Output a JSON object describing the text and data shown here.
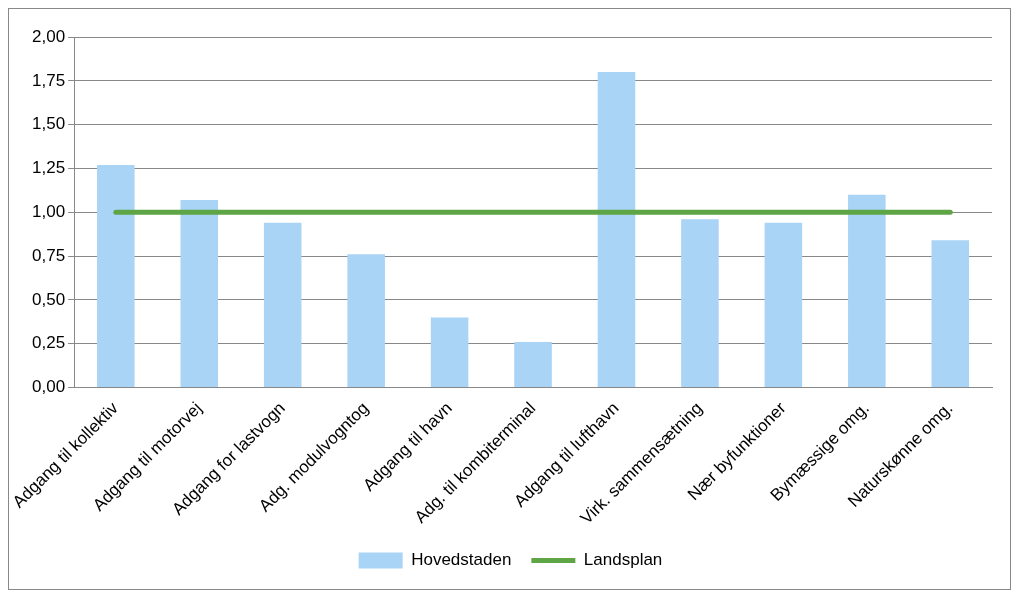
{
  "chart_data": {
    "type": "bar",
    "categories": [
      "Adgang til kollektiv",
      "Adgang til motorvej",
      "Adgang for lastvogn",
      "Adg. modulvogntog",
      "Adgang til havn",
      "Adg. til kombiterminal",
      "Adgang til lufthavn",
      "Virk. sammensætning",
      "Nær byfunktioner",
      "Bymæssige omg.",
      "Naturskønne omg."
    ],
    "series": [
      {
        "name": "Hovedstaden",
        "color": "#a9d4f5",
        "values": [
          1.27,
          1.07,
          0.94,
          0.76,
          0.4,
          0.26,
          1.8,
          0.96,
          0.94,
          1.1,
          0.84
        ]
      },
      {
        "name": "Landsplan",
        "type": "line",
        "color": "#5ea545",
        "values": [
          1.0,
          1.0,
          1.0,
          1.0,
          1.0,
          1.0,
          1.0,
          1.0,
          1.0,
          1.0,
          1.0
        ]
      }
    ],
    "ylim": [
      0,
      2
    ],
    "yticks": [
      {
        "value": 0,
        "label": "0,00"
      },
      {
        "value": 0.25,
        "label": "0,25"
      },
      {
        "value": 0.5,
        "label": "0,50"
      },
      {
        "value": 0.75,
        "label": "0,75"
      },
      {
        "value": 1,
        "label": "1,00"
      },
      {
        "value": 1.25,
        "label": "1,25"
      },
      {
        "value": 1.5,
        "label": "1,50"
      },
      {
        "value": 1.75,
        "label": "1,75"
      },
      {
        "value": 2,
        "label": "2,00"
      }
    ],
    "grid": "y",
    "legend": "bottom",
    "marker": "none",
    "line_style": "solid"
  }
}
